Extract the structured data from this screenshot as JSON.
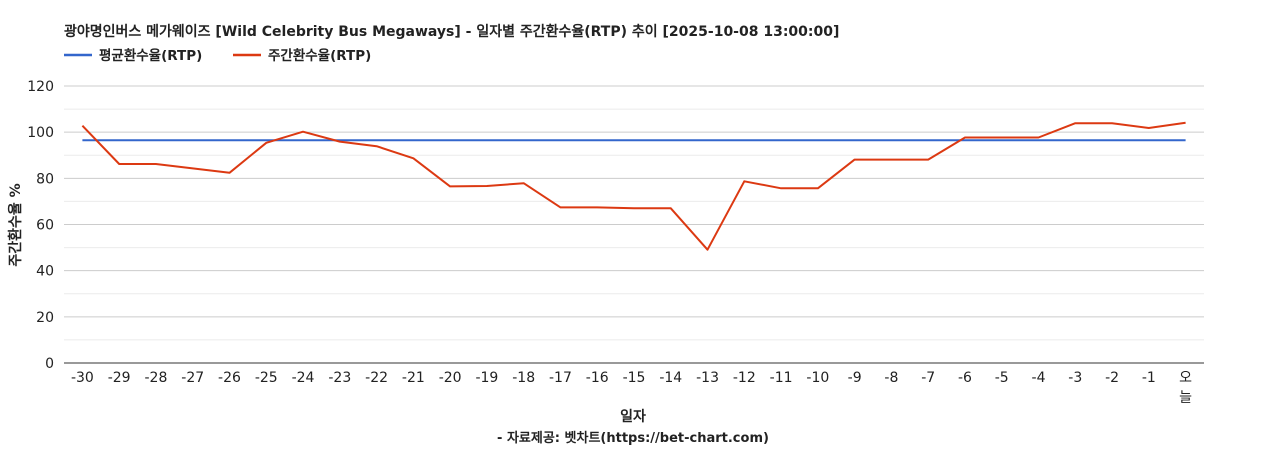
{
  "chart_data": {
    "type": "line",
    "title": "광야명인버스 메가웨이즈 [Wild Celebrity Bus Megaways] - 일자별 주간환수율(RTP) 추이 [2025-10-08 13:00:00]",
    "xlabel": "일자",
    "ylabel": "주간환수율 %",
    "source": "- 자료제공: 벳차트(https://bet-chart.com)",
    "ylim": [
      0,
      120
    ],
    "yticks": [
      "0",
      "20",
      "40",
      "60",
      "80",
      "100",
      "120"
    ],
    "grid": true,
    "legend_position": "top-left",
    "categories": [
      "-30",
      "-29",
      "-28",
      "-27",
      "-26",
      "-25",
      "-24",
      "-23",
      "-22",
      "-21",
      "-20",
      "-19",
      "-18",
      "-17",
      "-16",
      "-15",
      "-14",
      "-13",
      "-12",
      "-11",
      "-10",
      "-9",
      "-8",
      "-7",
      "-6",
      "-5",
      "-4",
      "-3",
      "-2",
      "-1",
      "오늘"
    ],
    "series": [
      {
        "name": "평균환수율(RTP)",
        "color": "#3366cc",
        "values": [
          96.5,
          96.5,
          96.5,
          96.5,
          96.5,
          96.5,
          96.5,
          96.5,
          96.5,
          96.5,
          96.5,
          96.5,
          96.5,
          96.5,
          96.5,
          96.5,
          96.5,
          96.5,
          96.5,
          96.5,
          96.5,
          96.5,
          96.5,
          96.5,
          96.5,
          96.5,
          96.5,
          96.5,
          96.5,
          96.5,
          96.5
        ]
      },
      {
        "name": "주간환수율(RTP)",
        "color": "#dc3912",
        "values": [
          102.8,
          86.2,
          86.2,
          84.3,
          82.4,
          95.4,
          100.2,
          95.9,
          93.9,
          88.7,
          76.5,
          76.7,
          77.9,
          67.4,
          67.4,
          67.0,
          67.0,
          49.1,
          78.7,
          75.7,
          75.7,
          88.1,
          88.1,
          88.1,
          97.7,
          97.7,
          97.7,
          103.9,
          103.9,
          101.8,
          104.1
        ]
      }
    ]
  }
}
